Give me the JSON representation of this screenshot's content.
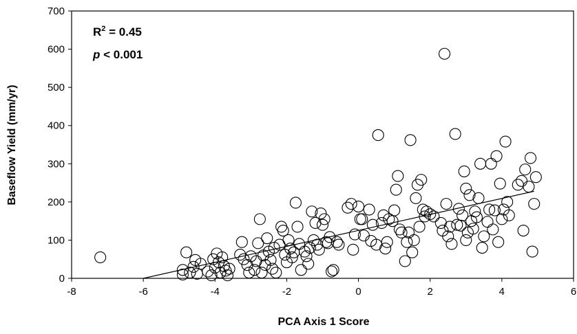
{
  "chart_data": {
    "type": "scatter",
    "xlabel": "PCA Axis 1 Score",
    "ylabel": "Baseflow Yield (mm/yr)",
    "xlim": [
      -8,
      6
    ],
    "ylim": [
      0,
      700
    ],
    "xticks": [
      -8,
      -6,
      -4,
      -2,
      0,
      2,
      4,
      6
    ],
    "yticks": [
      0,
      100,
      200,
      300,
      400,
      500,
      600,
      700
    ],
    "grid": false,
    "annotations": {
      "r2_prefix": "R",
      "r2_sup": "2",
      "r2_rest": " = 0.45",
      "p_italic": "p",
      "p_rest": " < 0.001"
    },
    "trendline": {
      "x": [
        -6.0,
        4.9
      ],
      "y": [
        0,
        228
      ]
    },
    "points": [
      [
        -7.2,
        55
      ],
      [
        -4.9,
        10
      ],
      [
        -4.9,
        22
      ],
      [
        -4.8,
        68
      ],
      [
        -4.7,
        15
      ],
      [
        -4.6,
        30
      ],
      [
        -4.55,
        48
      ],
      [
        -4.5,
        12
      ],
      [
        -4.4,
        38
      ],
      [
        -4.2,
        18
      ],
      [
        -4.1,
        8
      ],
      [
        -4.05,
        50
      ],
      [
        -4.0,
        28
      ],
      [
        -3.95,
        65
      ],
      [
        -3.9,
        42
      ],
      [
        -3.85,
        15
      ],
      [
        -3.8,
        55
      ],
      [
        -3.75,
        32
      ],
      [
        -3.7,
        20
      ],
      [
        -3.65,
        8
      ],
      [
        -3.6,
        25
      ],
      [
        -3.3,
        62
      ],
      [
        -3.25,
        95
      ],
      [
        -3.2,
        50
      ],
      [
        -3.1,
        35
      ],
      [
        -3.05,
        15
      ],
      [
        -3.0,
        58
      ],
      [
        -2.9,
        22
      ],
      [
        -2.85,
        45
      ],
      [
        -2.8,
        92
      ],
      [
        -2.75,
        155
      ],
      [
        -2.7,
        15
      ],
      [
        -2.65,
        60
      ],
      [
        -2.6,
        35
      ],
      [
        -2.55,
        105
      ],
      [
        -2.5,
        70
      ],
      [
        -2.45,
        48
      ],
      [
        -2.4,
        25
      ],
      [
        -2.35,
        80
      ],
      [
        -2.3,
        15
      ],
      [
        -2.2,
        88
      ],
      [
        -2.15,
        135
      ],
      [
        -2.1,
        125
      ],
      [
        -2.05,
        62
      ],
      [
        -2.0,
        42
      ],
      [
        -1.95,
        100
      ],
      [
        -1.9,
        78
      ],
      [
        -1.85,
        55
      ],
      [
        -1.8,
        68
      ],
      [
        -1.75,
        198
      ],
      [
        -1.7,
        135
      ],
      [
        -1.65,
        90
      ],
      [
        -1.6,
        22
      ],
      [
        -1.5,
        70
      ],
      [
        -1.45,
        58
      ],
      [
        -1.4,
        38
      ],
      [
        -1.35,
        80
      ],
      [
        -1.3,
        175
      ],
      [
        -1.25,
        100
      ],
      [
        -1.2,
        145
      ],
      [
        -1.15,
        88
      ],
      [
        -1.1,
        75
      ],
      [
        -1.05,
        170
      ],
      [
        -1.0,
        140
      ],
      [
        -0.95,
        155
      ],
      [
        -0.9,
        95
      ],
      [
        -0.85,
        92
      ],
      [
        -0.8,
        108
      ],
      [
        -0.75,
        18
      ],
      [
        -0.7,
        22
      ],
      [
        -0.6,
        95
      ],
      [
        -0.55,
        88
      ],
      [
        -0.3,
        185
      ],
      [
        -0.2,
        195
      ],
      [
        -0.15,
        75
      ],
      [
        -0.1,
        115
      ],
      [
        0.0,
        188
      ],
      [
        0.05,
        155
      ],
      [
        0.1,
        155
      ],
      [
        0.15,
        112
      ],
      [
        0.3,
        180
      ],
      [
        0.35,
        98
      ],
      [
        0.4,
        140
      ],
      [
        0.5,
        88
      ],
      [
        0.55,
        375
      ],
      [
        0.65,
        145
      ],
      [
        0.7,
        165
      ],
      [
        0.75,
        78
      ],
      [
        0.8,
        95
      ],
      [
        0.85,
        155
      ],
      [
        0.95,
        150
      ],
      [
        1.0,
        178
      ],
      [
        1.05,
        232
      ],
      [
        1.1,
        268
      ],
      [
        1.15,
        128
      ],
      [
        1.2,
        120
      ],
      [
        1.3,
        45
      ],
      [
        1.35,
        95
      ],
      [
        1.4,
        120
      ],
      [
        1.45,
        362
      ],
      [
        1.5,
        68
      ],
      [
        1.55,
        100
      ],
      [
        1.6,
        210
      ],
      [
        1.65,
        245
      ],
      [
        1.7,
        135
      ],
      [
        1.75,
        258
      ],
      [
        1.8,
        180
      ],
      [
        1.85,
        162
      ],
      [
        1.9,
        175
      ],
      [
        2.0,
        168
      ],
      [
        2.1,
        162
      ],
      [
        2.3,
        145
      ],
      [
        2.35,
        125
      ],
      [
        2.4,
        588
      ],
      [
        2.45,
        195
      ],
      [
        2.5,
        110
      ],
      [
        2.55,
        135
      ],
      [
        2.6,
        90
      ],
      [
        2.7,
        378
      ],
      [
        2.75,
        140
      ],
      [
        2.8,
        182
      ],
      [
        2.85,
        138
      ],
      [
        2.9,
        165
      ],
      [
        2.95,
        280
      ],
      [
        3.0,
        100
      ],
      [
        3.0,
        235
      ],
      [
        3.05,
        120
      ],
      [
        3.1,
        218
      ],
      [
        3.15,
        150
      ],
      [
        3.2,
        130
      ],
      [
        3.25,
        175
      ],
      [
        3.3,
        160
      ],
      [
        3.35,
        210
      ],
      [
        3.4,
        300
      ],
      [
        3.45,
        80
      ],
      [
        3.5,
        110
      ],
      [
        3.6,
        148
      ],
      [
        3.65,
        180
      ],
      [
        3.7,
        300
      ],
      [
        3.75,
        128
      ],
      [
        3.8,
        178
      ],
      [
        3.85,
        320
      ],
      [
        3.9,
        95
      ],
      [
        3.95,
        248
      ],
      [
        4.0,
        155
      ],
      [
        4.05,
        180
      ],
      [
        4.1,
        358
      ],
      [
        4.15,
        200
      ],
      [
        4.2,
        165
      ],
      [
        4.45,
        245
      ],
      [
        4.55,
        255
      ],
      [
        4.6,
        125
      ],
      [
        4.65,
        285
      ],
      [
        4.75,
        240
      ],
      [
        4.8,
        315
      ],
      [
        4.85,
        70
      ],
      [
        4.9,
        195
      ],
      [
        4.95,
        265
      ]
    ]
  }
}
